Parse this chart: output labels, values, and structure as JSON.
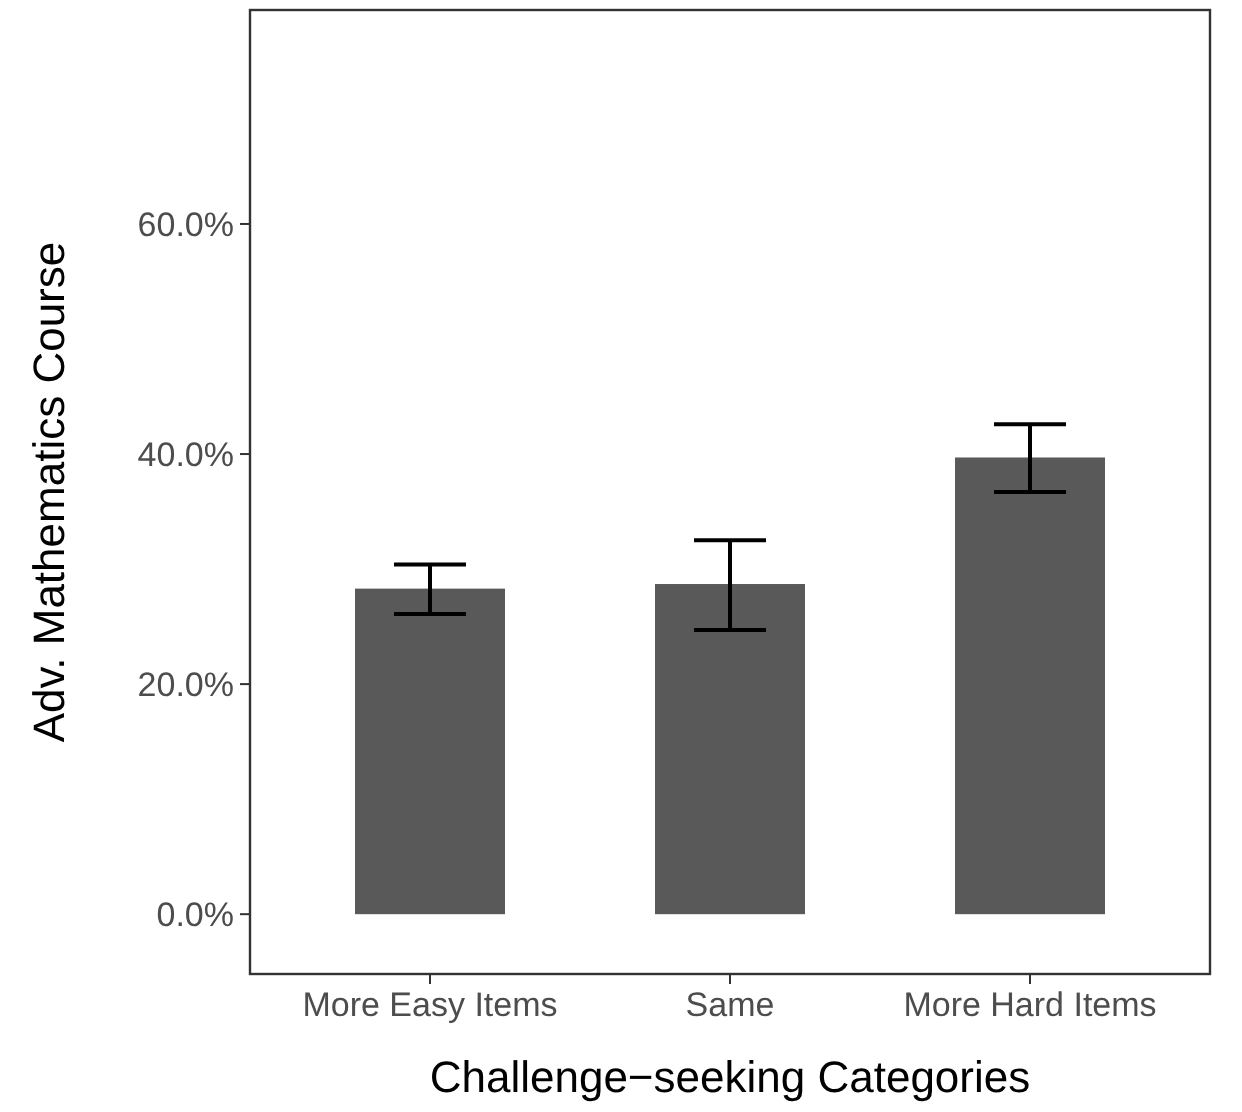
{
  "chart_data": {
    "type": "bar",
    "xlabel": "Challenge−seeking Categories",
    "ylabel": "Adv. Mathematics Course",
    "categories": [
      "More Easy Items",
      "Same",
      "More Hard Items"
    ],
    "values": [
      28.3,
      28.7,
      39.7
    ],
    "color": "#595959",
    "errors": [
      [
        26.1,
        30.4
      ],
      [
        24.7,
        32.5
      ],
      [
        36.7,
        42.6
      ]
    ],
    "ylim": [
      -5.2,
      78.6
    ],
    "yticks": [
      {
        "value": 0,
        "label": "0.0%"
      },
      {
        "value": 20,
        "label": "20.0%"
      },
      {
        "value": 40,
        "label": "40.0%"
      },
      {
        "value": 60,
        "label": "60.0%"
      }
    ],
    "grid": false
  }
}
